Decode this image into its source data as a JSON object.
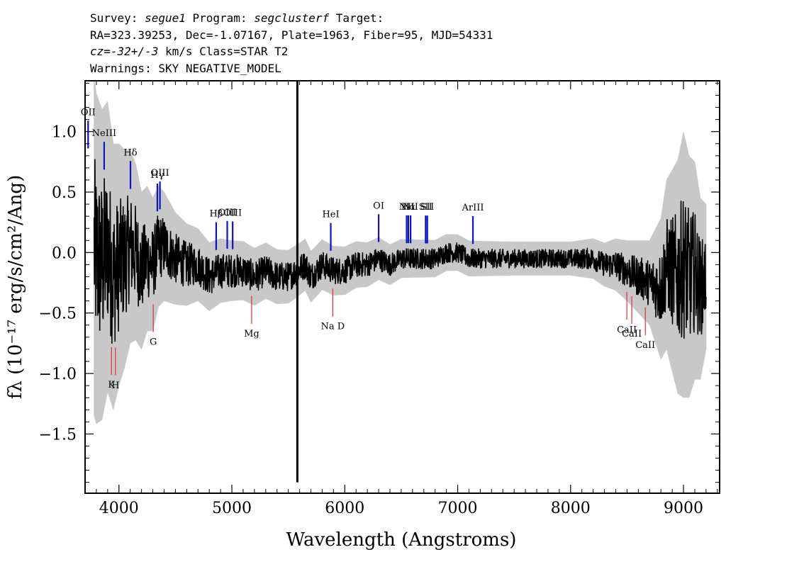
{
  "header": {
    "line1_prefix": "Survey: ",
    "survey": "segue1",
    "line1_mid": " Program: ",
    "program": "segclusterf",
    "line1_suffix": " Target:",
    "line2": "RA=323.39253, Dec=-1.07167, Plate=1963, Fiber=95, MJD=54331",
    "cz_label": "cz",
    "line3_mid": "=",
    "cz_value": "-32+/-3",
    "line3_suffix": " km/s Class=STAR T2",
    "line4": "Warnings: SKY NEGATIVE_MODEL"
  },
  "chart_data": {
    "type": "line",
    "xlabel": "Wavelength (Angstroms)",
    "ylabel": "fλ (10⁻¹⁷ erg/s/cm²/Ang)",
    "xlim": [
      3700,
      9320
    ],
    "ylim": [
      -1.99,
      1.42
    ],
    "x_ticks": [
      4000,
      5000,
      6000,
      7000,
      8000,
      9000
    ],
    "x_tick_labels": [
      "4000",
      "5000",
      "6000",
      "7000",
      "8000",
      "9000"
    ],
    "y_ticks": [
      1.0,
      0.5,
      0.0,
      -0.5,
      -1.0,
      -1.5
    ],
    "y_tick_labels": [
      "1.0",
      "0.5",
      "0.0",
      "−0.5",
      "−1.0",
      "−1.5"
    ],
    "grid": false,
    "series": [
      {
        "role": "flux",
        "color": "#000000",
        "x": [
          3780,
          3800,
          3850,
          3900,
          3950,
          4000,
          4050,
          4100,
          4150,
          4200,
          4250,
          4300,
          4350,
          4400,
          4500,
          4600,
          4700,
          4800,
          4900,
          5000,
          5100,
          5200,
          5300,
          5400,
          5500,
          5580,
          5650,
          5700,
          5800,
          5900,
          6000,
          6100,
          6200,
          6300,
          6400,
          6500,
          6600,
          6700,
          6800,
          6900,
          7000,
          7100,
          7200,
          7300,
          7400,
          7500,
          7600,
          7700,
          7800,
          7900,
          8000,
          8100,
          8200,
          8300,
          8400,
          8500,
          8600,
          8700,
          8800,
          8850,
          8900,
          8950,
          9000,
          9050,
          9100,
          9150,
          9200
        ],
        "values": [
          0.05,
          -0.05,
          -0.1,
          0.05,
          -0.2,
          -0.1,
          -0.05,
          0.05,
          0.0,
          -0.15,
          -0.05,
          -0.1,
          0.05,
          0.05,
          -0.05,
          -0.1,
          -0.1,
          -0.2,
          -0.15,
          -0.15,
          -0.15,
          -0.2,
          -0.15,
          -0.2,
          -0.2,
          -0.15,
          -0.1,
          -0.2,
          -0.1,
          -0.15,
          -0.15,
          -0.1,
          -0.1,
          -0.05,
          -0.1,
          -0.05,
          -0.05,
          -0.05,
          -0.05,
          0.0,
          0.0,
          -0.05,
          -0.05,
          -0.05,
          -0.05,
          -0.05,
          -0.05,
          -0.05,
          -0.05,
          -0.05,
          -0.05,
          -0.05,
          -0.05,
          -0.1,
          -0.1,
          -0.15,
          -0.2,
          -0.25,
          -0.3,
          -0.1,
          -0.15,
          -0.2,
          -0.1,
          -0.2,
          -0.15,
          -0.3,
          -0.2
        ]
      },
      {
        "role": "error",
        "color": "#c8c8c8",
        "x": [
          3780,
          3900,
          4000,
          4100,
          4200,
          4300,
          4400,
          4500,
          4700,
          5000,
          5500,
          6000,
          6500,
          7000,
          7500,
          8000,
          8300,
          8500,
          8700,
          8850,
          9000,
          9100,
          9200
        ],
        "values": [
          1.4,
          1.2,
          1.0,
          0.8,
          0.65,
          0.55,
          0.45,
          0.38,
          0.3,
          0.25,
          0.22,
          0.2,
          0.16,
          0.15,
          0.14,
          0.14,
          0.18,
          0.25,
          0.35,
          0.7,
          1.1,
          0.9,
          0.6
        ]
      }
    ],
    "emission_lines": [
      {
        "label": "OII",
        "x": 3727,
        "color": "#1010d0"
      },
      {
        "label": "NeIII",
        "x": 3869,
        "color": "#1010d0"
      },
      {
        "label": "Hδ",
        "x": 4102,
        "color": "#1010d0"
      },
      {
        "label": "Hγ",
        "x": 4340,
        "color": "#1010d0"
      },
      {
        "label": "OIII",
        "x": 4363,
        "color": "#1010d0"
      },
      {
        "label": "Hβ",
        "x": 4861,
        "color": "#1010d0"
      },
      {
        "label": "OIII",
        "x": 4959,
        "color": "#1010d0"
      },
      {
        "label": "OIII",
        "x": 5007,
        "color": "#1010d0"
      },
      {
        "label": "HeI",
        "x": 5876,
        "color": "#1010d0"
      },
      {
        "label": "OI",
        "x": 6300,
        "color": "#1010d0"
      },
      {
        "label": "NII",
        "x": 6548,
        "color": "#1010d0"
      },
      {
        "label": "Hα",
        "x": 6563,
        "color": "#1010d0"
      },
      {
        "label": "NII",
        "x": 6583,
        "color": "#1010d0"
      },
      {
        "label": "SII",
        "x": 6716,
        "color": "#1010d0"
      },
      {
        "label": "SII",
        "x": 6731,
        "color": "#1010d0"
      },
      {
        "label": "ArIII",
        "x": 7135,
        "color": "#1010d0"
      }
    ],
    "absorption_lines": [
      {
        "label": "K",
        "x": 3934,
        "color": "#e03030"
      },
      {
        "label": "H",
        "x": 3969,
        "color": "#e03030"
      },
      {
        "label": "G",
        "x": 4304,
        "color": "#e03030"
      },
      {
        "label": "Mg",
        "x": 5175,
        "color": "#e03030"
      },
      {
        "label": "Na D",
        "x": 5894,
        "color": "#e03030"
      },
      {
        "label": "CaII",
        "x": 8498,
        "color": "#e03030"
      },
      {
        "label": "CaII",
        "x": 8542,
        "color": "#e03030"
      },
      {
        "label": "CaII",
        "x": 8662,
        "color": "#e03030"
      }
    ]
  }
}
